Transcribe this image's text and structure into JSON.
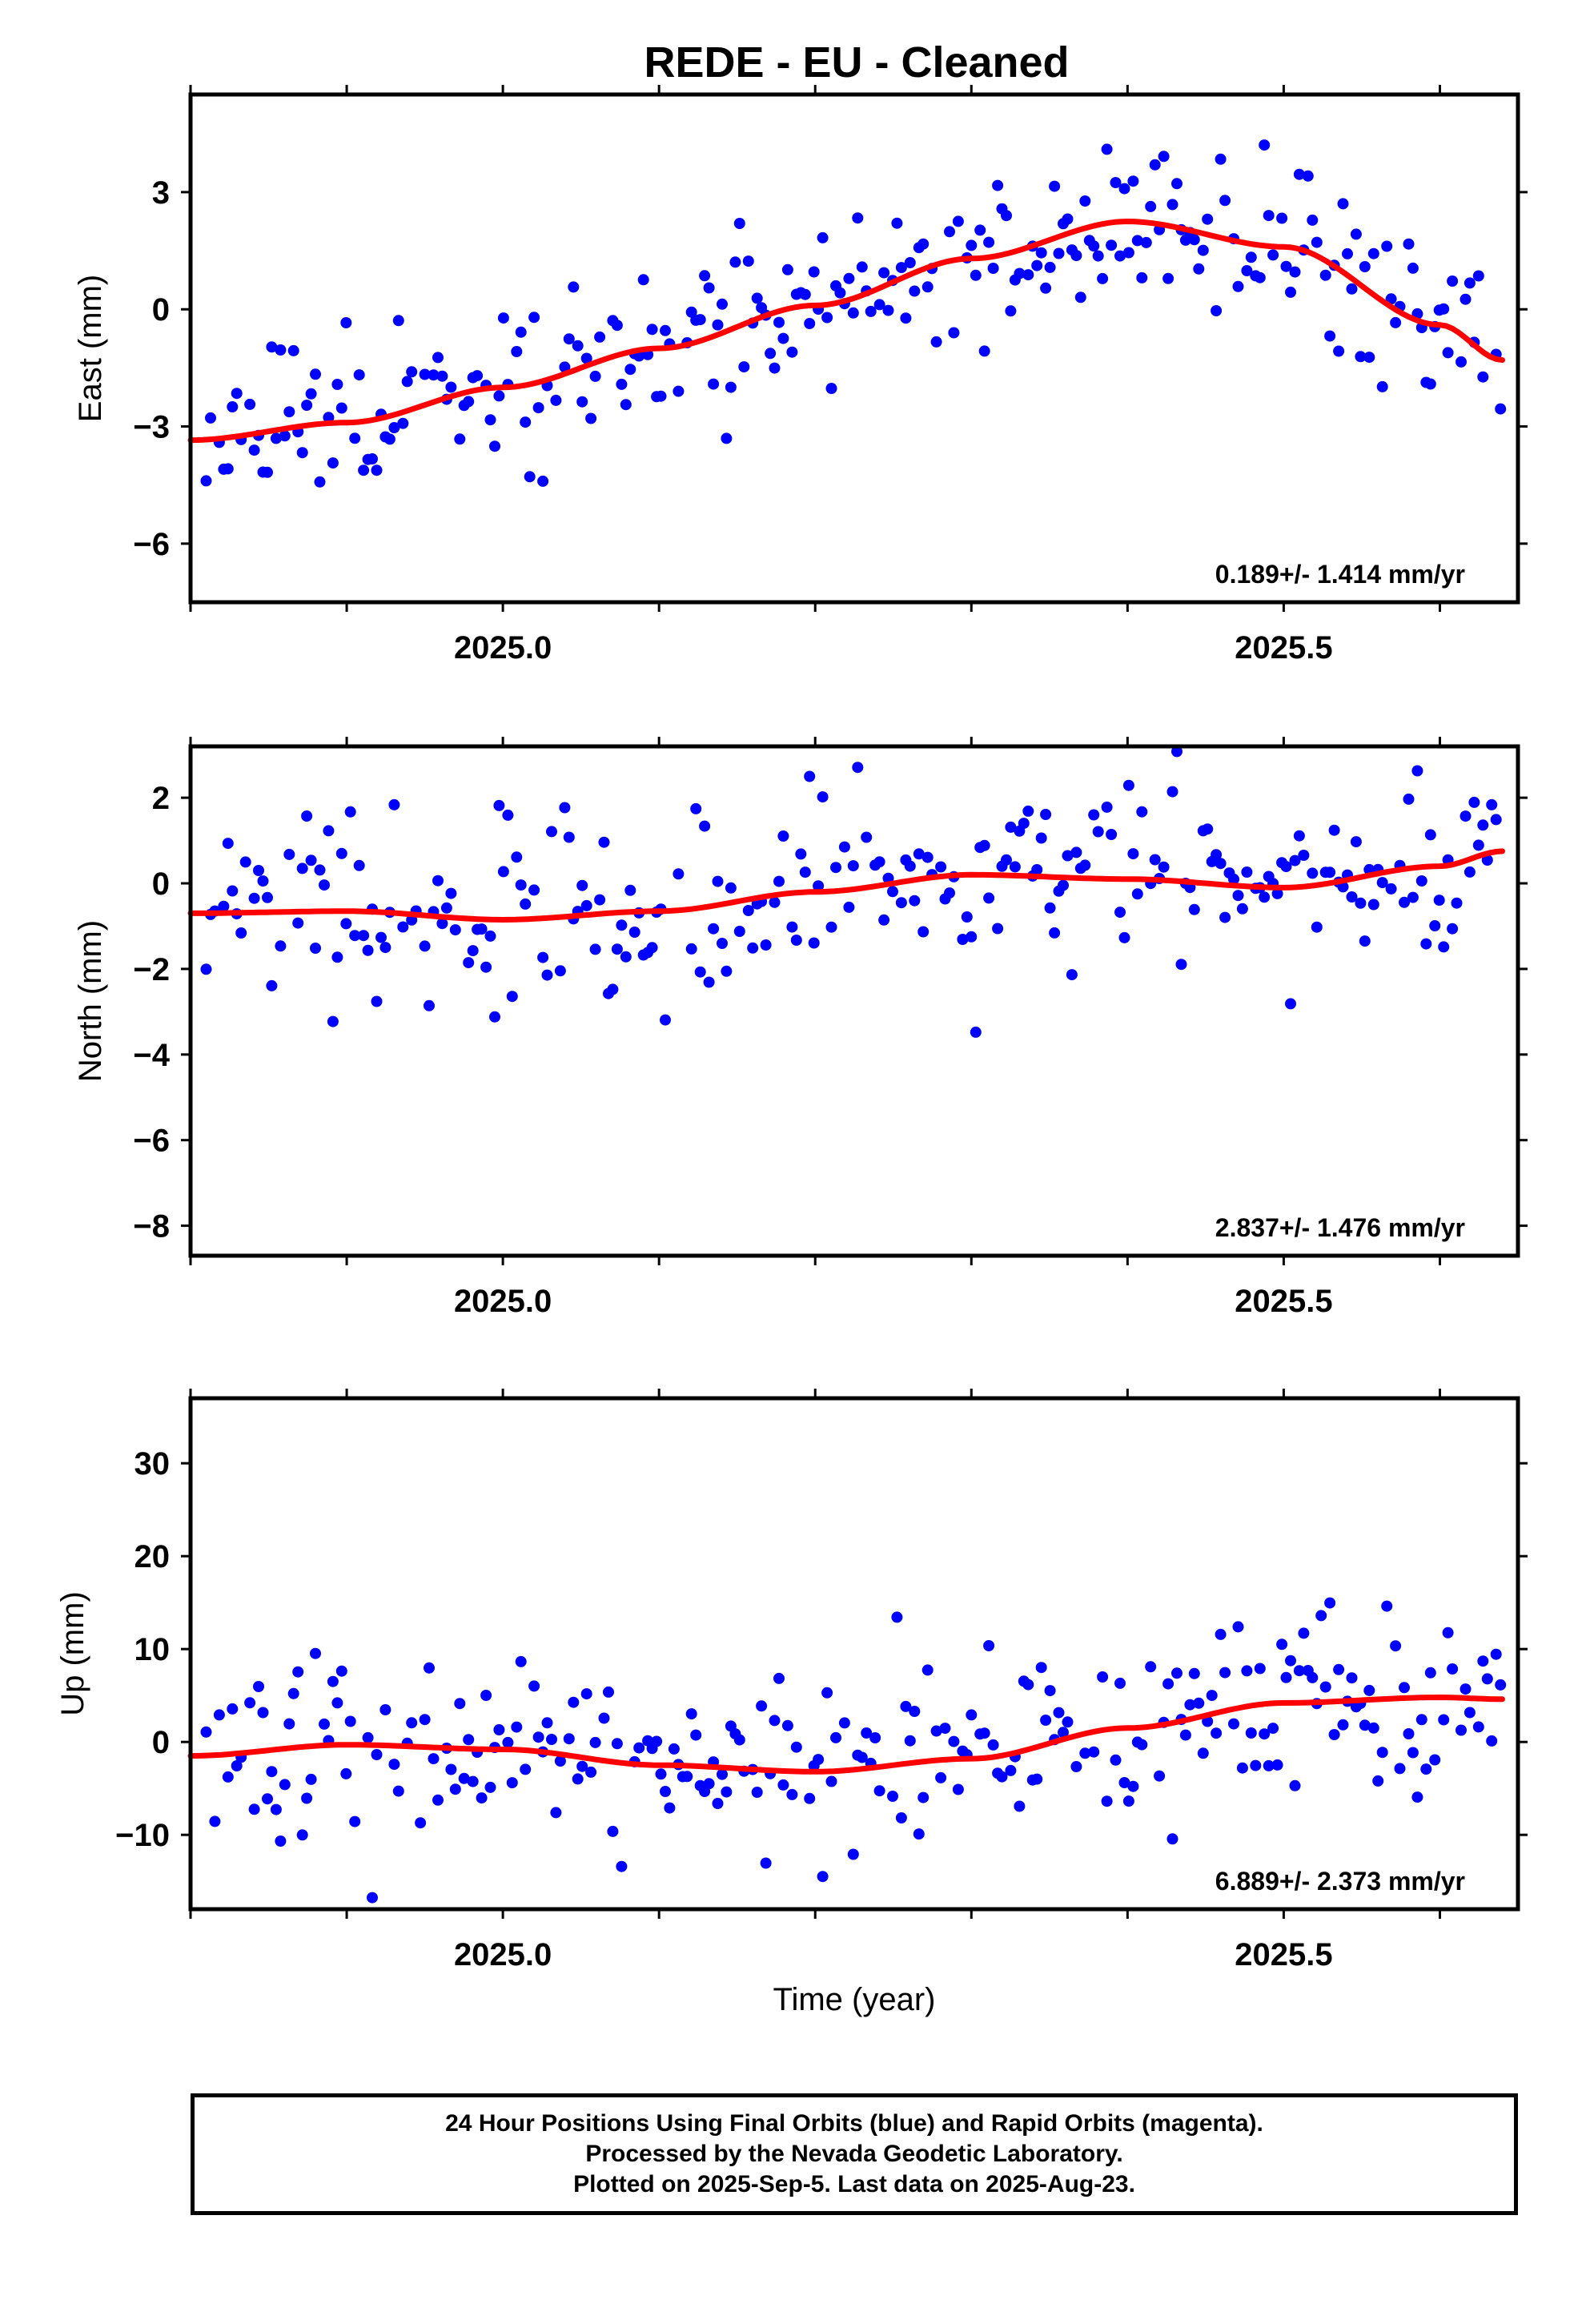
{
  "title": "REDE  - EU - Cleaned",
  "footer": {
    "line1": "24 Hour Positions Using Final Orbits (blue) and Rapid Orbits (magenta).",
    "line2": "Processed by the Nevada Geodetic Laboratory.",
    "line3": "Plotted on 2025-Sep-5. Last data on 2025-Aug-23."
  },
  "colors": {
    "points": "#0000ff",
    "fit": "#ff0000",
    "axes": "#000000"
  },
  "chart_data": [
    {
      "type": "scatter",
      "title": "REDE  - EU - Cleaned",
      "xlabel": "",
      "ylabel": "East (mm)",
      "xlim": [
        2024.8,
        2025.65
      ],
      "ylim": [
        -7.5,
        5.5
      ],
      "xticks": [
        2025.0,
        2025.5
      ],
      "xtick_labels": [
        "2025.0",
        "2025.5"
      ],
      "yticks": [
        -6,
        -3,
        0,
        3
      ],
      "ytick_labels": [
        "−6",
        "−3",
        "0",
        "3"
      ],
      "annotation": "0.189+/- 1.414 mm/yr",
      "fit_curve": {
        "name": "",
        "x": [
          2024.8,
          2024.9,
          2025.0,
          2025.1,
          2025.2,
          2025.3,
          2025.4,
          2025.5,
          2025.6,
          2025.64
        ],
        "y": [
          -3.35,
          -2.9,
          -2.0,
          -1.0,
          0.1,
          1.3,
          2.25,
          1.6,
          -0.4,
          -1.3
        ]
      },
      "seed": 11
    },
    {
      "type": "scatter",
      "xlabel": "",
      "ylabel": "North (mm)",
      "xlim": [
        2024.8,
        2025.65
      ],
      "ylim": [
        -8.7,
        3.2
      ],
      "xticks": [
        2025.0,
        2025.5
      ],
      "xtick_labels": [
        "2025.0",
        "2025.5"
      ],
      "yticks": [
        -8,
        -6,
        -4,
        -2,
        0,
        2
      ],
      "ytick_labels": [
        "−8",
        "−6",
        "−4",
        "−2",
        "0",
        "2"
      ],
      "annotation": "2.837+/- 1.476 mm/yr",
      "fit_curve": {
        "name": "",
        "x": [
          2024.8,
          2024.9,
          2025.0,
          2025.1,
          2025.2,
          2025.3,
          2025.4,
          2025.5,
          2025.6,
          2025.64
        ],
        "y": [
          -0.7,
          -0.65,
          -0.85,
          -0.65,
          -0.2,
          0.2,
          0.1,
          -0.1,
          0.4,
          0.75
        ]
      },
      "seed": 23
    },
    {
      "type": "scatter",
      "xlabel": "Time (year)",
      "ylabel": "Up (mm)",
      "xlim": [
        2024.8,
        2025.65
      ],
      "ylim": [
        -18,
        37
      ],
      "xticks": [
        2025.0,
        2025.5
      ],
      "xtick_labels": [
        "2025.0",
        "2025.5"
      ],
      "yticks": [
        -10,
        0,
        10,
        20,
        30
      ],
      "ytick_labels": [
        "−10",
        "0",
        "10",
        "20",
        "30"
      ],
      "annotation": "6.889+/- 2.373 mm/yr",
      "fit_curve": {
        "name": "",
        "x": [
          2024.8,
          2024.9,
          2025.0,
          2025.1,
          2025.2,
          2025.3,
          2025.4,
          2025.5,
          2025.6,
          2025.64
        ],
        "y": [
          -1.5,
          -0.3,
          -0.8,
          -2.5,
          -3.2,
          -1.8,
          1.5,
          4.2,
          4.8,
          4.6
        ]
      },
      "seed": 37
    }
  ]
}
